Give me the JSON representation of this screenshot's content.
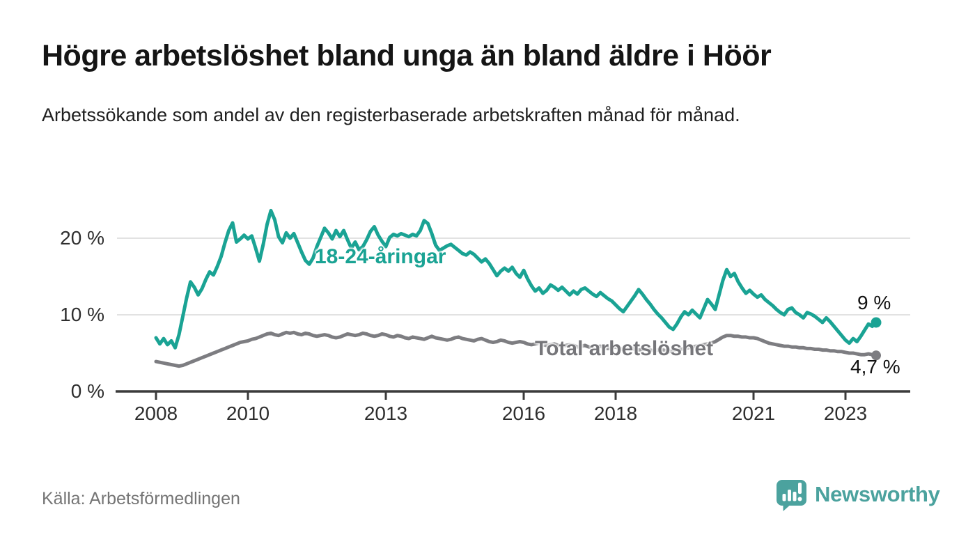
{
  "header": {
    "title": "Högre arbetslöshet bland unga än bland äldre i Höör",
    "subtitle": "Arbetssökande som andel av den registerbaserade arbetskraften månad för månad."
  },
  "footer": {
    "source": "Källa: Arbetsförmedlingen",
    "logo_text": "Newsworthy",
    "logo_color": "#4BA29E"
  },
  "chart_data": {
    "type": "line",
    "title": "Högre arbetslöshet bland unga än bland äldre i Höör",
    "subtitle": "Arbetssökande som andel av den registerbaserade arbetskraften månad för månad.",
    "source": "Källa: Arbetsförmedlingen",
    "grid": "horizontal-only",
    "x_axis": {
      "unit": "year",
      "start": "2008-01",
      "end": "2023-09",
      "freq": "monthly",
      "ticks": [
        2008,
        2010,
        2013,
        2016,
        2018,
        2021,
        2023
      ],
      "tick_labels": [
        "2008",
        "2010",
        "2013",
        "2016",
        "2018",
        "2021",
        "2023"
      ]
    },
    "y_axis": {
      "unit": "%",
      "range": [
        0,
        24
      ],
      "tick_values": [
        0,
        10,
        20
      ],
      "tick_labels": [
        "0 %",
        "10 %",
        "20 %"
      ]
    },
    "series": [
      {
        "name": "18-24-åringar",
        "color": "#1AA394",
        "end_value_label": "9 %",
        "end_value": 9.0,
        "values": [
          7.0,
          6.2,
          6.9,
          6.1,
          6.6,
          5.7,
          7.4,
          9.8,
          12.2,
          14.3,
          13.6,
          12.6,
          13.4,
          14.6,
          15.6,
          15.2,
          16.3,
          17.6,
          19.4,
          21.0,
          22.0,
          19.5,
          19.9,
          20.4,
          19.9,
          20.3,
          18.7,
          17.0,
          19.2,
          21.8,
          23.6,
          22.4,
          20.2,
          19.4,
          20.7,
          20.0,
          20.6,
          19.4,
          18.2,
          17.1,
          16.6,
          17.4,
          18.9,
          20.1,
          21.3,
          20.7,
          19.9,
          21.0,
          20.2,
          21.0,
          19.8,
          18.7,
          19.5,
          18.5,
          18.9,
          19.8,
          20.9,
          21.5,
          20.4,
          19.6,
          18.9,
          20.1,
          20.5,
          20.3,
          20.6,
          20.4,
          20.2,
          20.5,
          20.3,
          21.0,
          22.3,
          21.9,
          20.6,
          19.1,
          18.4,
          18.7,
          19.0,
          19.2,
          18.8,
          18.4,
          18.0,
          17.8,
          18.2,
          17.9,
          17.4,
          16.9,
          17.3,
          16.7,
          15.9,
          15.1,
          15.7,
          16.1,
          15.7,
          16.2,
          15.4,
          14.9,
          15.8,
          14.7,
          13.8,
          13.1,
          13.5,
          12.8,
          13.2,
          13.9,
          13.6,
          13.2,
          13.6,
          13.1,
          12.6,
          13.1,
          12.7,
          13.3,
          13.5,
          13.1,
          12.7,
          12.4,
          12.9,
          12.5,
          12.1,
          11.8,
          11.3,
          10.8,
          10.4,
          11.1,
          11.8,
          12.5,
          13.3,
          12.7,
          12.0,
          11.4,
          10.7,
          10.1,
          9.6,
          9.0,
          8.4,
          8.1,
          8.8,
          9.7,
          10.4,
          10.0,
          10.6,
          10.1,
          9.6,
          10.8,
          12.0,
          11.4,
          10.7,
          12.6,
          14.5,
          15.9,
          15.0,
          15.4,
          14.3,
          13.5,
          12.8,
          13.2,
          12.7,
          12.3,
          12.6,
          12.0,
          11.6,
          11.2,
          10.7,
          10.3,
          10.0,
          10.7,
          10.9,
          10.3,
          10.0,
          9.6,
          10.3,
          10.1,
          9.8,
          9.4,
          9.0,
          9.6,
          9.1,
          8.5,
          7.9,
          7.3,
          6.7,
          6.3,
          6.9,
          6.5,
          7.2,
          8.0,
          8.8,
          8.5,
          9.0
        ]
      },
      {
        "name": "Total arbetslöshet",
        "color": "#7d7d81",
        "end_value_label": "4,7 %",
        "end_value": 4.7,
        "values": [
          3.9,
          3.8,
          3.7,
          3.6,
          3.5,
          3.4,
          3.3,
          3.4,
          3.6,
          3.8,
          4.0,
          4.2,
          4.4,
          4.6,
          4.8,
          5.0,
          5.2,
          5.4,
          5.6,
          5.8,
          6.0,
          6.2,
          6.4,
          6.5,
          6.6,
          6.8,
          6.9,
          7.1,
          7.3,
          7.5,
          7.6,
          7.4,
          7.3,
          7.5,
          7.7,
          7.6,
          7.7,
          7.5,
          7.4,
          7.6,
          7.5,
          7.3,
          7.2,
          7.3,
          7.4,
          7.3,
          7.1,
          7.0,
          7.1,
          7.3,
          7.5,
          7.4,
          7.3,
          7.4,
          7.6,
          7.5,
          7.3,
          7.2,
          7.3,
          7.5,
          7.4,
          7.2,
          7.1,
          7.3,
          7.2,
          7.0,
          6.9,
          7.1,
          7.0,
          6.9,
          6.8,
          7.0,
          7.2,
          7.0,
          6.9,
          6.8,
          6.7,
          6.8,
          7.0,
          7.1,
          6.9,
          6.8,
          6.7,
          6.6,
          6.8,
          6.9,
          6.7,
          6.5,
          6.4,
          6.5,
          6.7,
          6.6,
          6.4,
          6.3,
          6.4,
          6.5,
          6.4,
          6.2,
          6.1,
          6.2,
          6.3,
          6.1,
          6.0,
          6.1,
          6.2,
          6.0,
          5.9,
          6.0,
          6.1,
          6.0,
          5.8,
          5.9,
          6.0,
          5.8,
          5.7,
          5.8,
          5.9,
          5.7,
          5.6,
          5.7,
          5.8,
          5.6,
          5.5,
          5.6,
          5.7,
          5.5,
          5.4,
          5.5,
          5.6,
          5.4,
          5.3,
          5.4,
          5.5,
          5.3,
          5.2,
          5.3,
          5.4,
          5.5,
          5.6,
          5.7,
          5.8,
          5.9,
          6.0,
          6.1,
          6.2,
          6.3,
          6.5,
          6.8,
          7.1,
          7.3,
          7.3,
          7.2,
          7.2,
          7.1,
          7.1,
          7.0,
          7.0,
          6.9,
          6.7,
          6.5,
          6.3,
          6.2,
          6.1,
          6.0,
          5.9,
          5.9,
          5.8,
          5.8,
          5.7,
          5.7,
          5.6,
          5.6,
          5.5,
          5.5,
          5.4,
          5.4,
          5.3,
          5.3,
          5.2,
          5.2,
          5.1,
          5.0,
          5.0,
          4.9,
          4.8,
          4.8,
          4.9,
          4.8,
          4.7
        ]
      }
    ]
  }
}
